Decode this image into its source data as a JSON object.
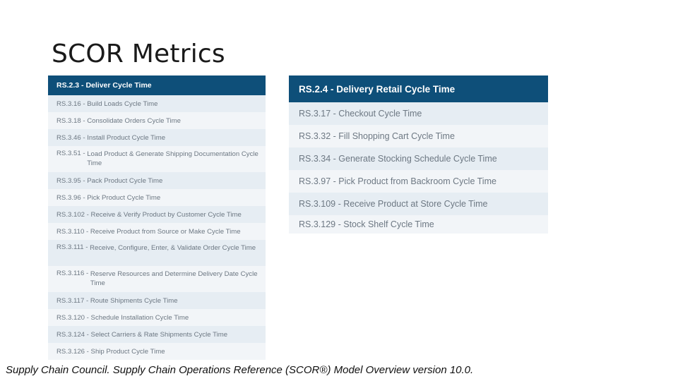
{
  "slide": {
    "title": "SCOR Metrics",
    "citation": "Supply Chain Council. Supply Chain Operations Reference (SCOR®) Model Overview version 10.0."
  },
  "left_table": {
    "header": {
      "code": "RS.2.3",
      "name": "Deliver Cycle Time"
    },
    "rows": [
      {
        "code": "RS.3.16",
        "name": "Build Loads Cycle Time"
      },
      {
        "code": "RS.3.18",
        "name": "Consolidate Orders Cycle Time"
      },
      {
        "code": "RS.3.46",
        "name": "Install Product Cycle Time"
      },
      {
        "code": "RS.3.51",
        "name": "Load Product & Generate Shipping Documentation Cycle Time"
      },
      {
        "code": "RS.3.95",
        "name": "Pack Product Cycle Time"
      },
      {
        "code": "RS.3.96",
        "name": "Pick Product Cycle Time"
      },
      {
        "code": "RS.3.102",
        "name": "Receive & Verify Product by Customer Cycle Time"
      },
      {
        "code": "RS.3.110",
        "name": "Receive Product from Source or Make Cycle Time"
      },
      {
        "code": "RS.3.111",
        "name": "Receive, Configure, Enter, & Validate Order Cycle Time"
      },
      {
        "code": "RS.3.116",
        "name": "Reserve Resources and Determine Delivery Date Cycle Time"
      },
      {
        "code": "RS.3.117",
        "name": "Route Shipments Cycle Time"
      },
      {
        "code": "RS.3.120",
        "name": "Schedule Installation Cycle Time"
      },
      {
        "code": "RS.3.124",
        "name": "Select Carriers & Rate Shipments Cycle Time"
      },
      {
        "code": "RS.3.126",
        "name": "Ship Product Cycle Time"
      }
    ]
  },
  "right_table": {
    "header": {
      "code": "RS.2.4",
      "name": "Delivery Retail Cycle Time"
    },
    "rows": [
      {
        "code": "RS.3.17",
        "name": "Checkout Cycle Time"
      },
      {
        "code": "RS.3.32",
        "name": "Fill Shopping Cart Cycle Time"
      },
      {
        "code": "RS.3.34",
        "name": "Generate Stocking Schedule Cycle Time"
      },
      {
        "code": "RS.3.97",
        "name": "Pick Product from Backroom Cycle Time"
      },
      {
        "code": "RS.3.109",
        "name": "Receive Product at Store Cycle Time"
      },
      {
        "code": "RS.3.129",
        "name": "Stock Shelf Cycle Time"
      }
    ]
  },
  "colors": {
    "header_bg": "#0e4f79",
    "row_odd_bg": "#e6edf3",
    "row_even_bg": "#f2f5f8",
    "row_text": "#6d7883"
  }
}
